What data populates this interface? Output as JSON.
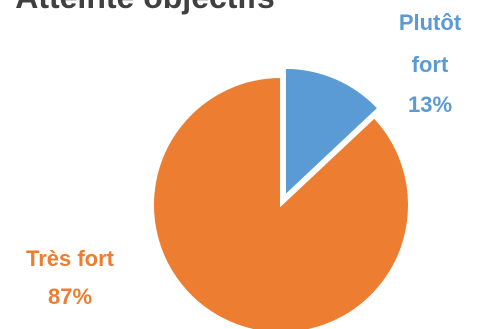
{
  "chart_data": {
    "type": "pie",
    "title": "Atteinte objectifs",
    "slices": [
      {
        "name": "Plutôt fort",
        "label_lines": [
          "Plutôt",
          "fort"
        ],
        "percent_label": "13%",
        "value": 13,
        "color": "#5B9BD5",
        "exploded": true
      },
      {
        "name": "Très fort",
        "label_lines": [
          "Très fort"
        ],
        "percent_label": "87%",
        "value": 87,
        "color": "#ED7D31",
        "exploded": false
      }
    ],
    "legend": "none",
    "label_colors_match_slices": true
  }
}
